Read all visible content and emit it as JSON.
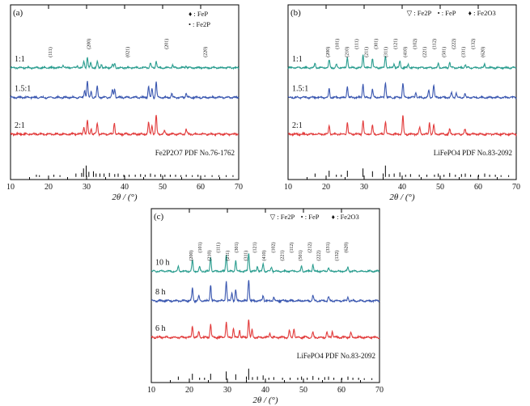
{
  "chart_data": [
    {
      "panel_label": "(a)",
      "type": "line",
      "xlabel": "2θ / (°)",
      "x_ticks": [
        10,
        20,
        30,
        40,
        50,
        60,
        70
      ],
      "xlim": [
        10,
        70
      ],
      "legend": [
        {
          "symbol": "♦",
          "label": "FeP"
        },
        {
          "symbol": "•",
          "label": "Fe2P"
        }
      ],
      "series": [
        {
          "name": "1:1",
          "color": "#2a9d8f",
          "peaks": [
            [
              23.8,
              0.08
            ],
            [
              27.6,
              0.06
            ],
            [
              29.3,
              0.18
            ],
            [
              30.2,
              0.32
            ],
            [
              31.1,
              0.14
            ],
            [
              32.8,
              0.18
            ],
            [
              33.9,
              0.1
            ],
            [
              36.8,
              0.1
            ],
            [
              37.4,
              0.12
            ],
            [
              46.8,
              0.14
            ],
            [
              48.3,
              0.2
            ],
            [
              52.6,
              0.08
            ],
            [
              56.2,
              0.06
            ]
          ]
        },
        {
          "name": "1.5:1",
          "color": "#3a57b0",
          "peaks": [
            [
              29.5,
              0.2
            ],
            [
              30.2,
              0.45
            ],
            [
              31.2,
              0.18
            ],
            [
              32.8,
              0.3
            ],
            [
              36.8,
              0.2
            ],
            [
              37.4,
              0.24
            ],
            [
              46.3,
              0.3
            ],
            [
              47.2,
              0.25
            ],
            [
              48.3,
              0.42
            ],
            [
              52.4,
              0.1
            ],
            [
              56.2,
              0.12
            ]
          ]
        },
        {
          "name": "2:1",
          "color": "#e23b3b",
          "peaks": [
            [
              29.3,
              0.2
            ],
            [
              30.2,
              0.35
            ],
            [
              31.2,
              0.15
            ],
            [
              32.8,
              0.3
            ],
            [
              37.3,
              0.3
            ],
            [
              46.3,
              0.3
            ],
            [
              47.2,
              0.24
            ],
            [
              48.3,
              0.5
            ],
            [
              50.5,
              0.08
            ],
            [
              56.2,
              0.12
            ]
          ]
        }
      ],
      "peak_labels": [
        "(111)",
        "(200)",
        "(021)",
        "(201)",
        "(220)"
      ],
      "reference_label": "Fe2P2O7 PDF No.76-1762",
      "reference_lines": [
        [
          16.8,
          0.2
        ],
        [
          17.6,
          0.15
        ],
        [
          21.4,
          0.2
        ],
        [
          23.0,
          0.15
        ],
        [
          27.2,
          0.3
        ],
        [
          28.7,
          0.35
        ],
        [
          29.2,
          0.75
        ],
        [
          29.9,
          1.0
        ],
        [
          30.6,
          0.45
        ],
        [
          31.8,
          0.5
        ],
        [
          32.5,
          0.3
        ],
        [
          33.5,
          0.3
        ],
        [
          34.6,
          0.3
        ],
        [
          36.0,
          0.35
        ],
        [
          37.4,
          0.25
        ],
        [
          38.3,
          0.3
        ],
        [
          39.8,
          0.2
        ],
        [
          41.2,
          0.2
        ],
        [
          42.8,
          0.2
        ],
        [
          44.2,
          0.25
        ],
        [
          45.4,
          0.2
        ],
        [
          46.8,
          0.3
        ],
        [
          48.0,
          0.2
        ],
        [
          49.5,
          0.25
        ],
        [
          50.6,
          0.2
        ],
        [
          52.0,
          0.2
        ],
        [
          53.4,
          0.2
        ],
        [
          54.8,
          0.15
        ],
        [
          56.2,
          0.2
        ],
        [
          57.8,
          0.15
        ],
        [
          59.3,
          0.2
        ],
        [
          61.1,
          0.15
        ],
        [
          63.0,
          0.15
        ],
        [
          64.8,
          0.15
        ],
        [
          66.7,
          0.15
        ],
        [
          68.5,
          0.15
        ]
      ]
    },
    {
      "panel_label": "(b)",
      "type": "line",
      "xlabel": "2θ / (°)",
      "x_ticks": [
        10,
        20,
        30,
        40,
        50,
        60,
        70
      ],
      "xlim": [
        10,
        70
      ],
      "legend": [
        {
          "symbol": "▽",
          "label": "Fe2P"
        },
        {
          "symbol": "•",
          "label": "FeP"
        },
        {
          "symbol": "♦",
          "label": "Fe2O3"
        }
      ],
      "series": [
        {
          "name": "1:1",
          "color": "#2a9d8f",
          "peaks": [
            [
              17.1,
              0.12
            ],
            [
              20.8,
              0.22
            ],
            [
              22.7,
              0.1
            ],
            [
              25.6,
              0.3
            ],
            [
              29.7,
              0.4
            ],
            [
              32.2,
              0.28
            ],
            [
              35.6,
              0.35
            ],
            [
              37.9,
              0.12
            ],
            [
              39.4,
              0.2
            ],
            [
              41.6,
              0.1
            ],
            [
              49.5,
              0.12
            ],
            [
              52.5,
              0.18
            ],
            [
              56.6,
              0.1
            ],
            [
              61.7,
              0.1
            ]
          ]
        },
        {
          "name": "1.5:1",
          "color": "#3a57b0",
          "peaks": [
            [
              20.8,
              0.24
            ],
            [
              25.6,
              0.32
            ],
            [
              29.7,
              0.38
            ],
            [
              32.2,
              0.22
            ],
            [
              35.6,
              0.42
            ],
            [
              40.2,
              0.4
            ],
            [
              43.6,
              0.14
            ],
            [
              47.0,
              0.2
            ],
            [
              48.3,
              0.34
            ],
            [
              53.0,
              0.12
            ],
            [
              54.2,
              0.12
            ],
            [
              56.5,
              0.1
            ]
          ]
        },
        {
          "name": "2:1",
          "color": "#e23b3b",
          "peaks": [
            [
              20.8,
              0.24
            ],
            [
              25.6,
              0.3
            ],
            [
              29.7,
              0.35
            ],
            [
              32.2,
              0.22
            ],
            [
              35.6,
              0.34
            ],
            [
              40.2,
              0.5
            ],
            [
              44.6,
              0.16
            ],
            [
              47.2,
              0.3
            ],
            [
              48.3,
              0.24
            ],
            [
              52.5,
              0.12
            ],
            [
              56.5,
              0.12
            ]
          ]
        }
      ],
      "peak_labels": [
        "(200)",
        "(101)",
        "(210)",
        "(111)",
        "(211)",
        "(301)",
        "(311)",
        "(121)",
        "(410)",
        "(102)",
        "(221)",
        "(112)",
        "(501)",
        "(222)",
        "(331)",
        "(132)",
        "(620)"
      ],
      "reference_label": "LiFePO4 PDF No.83-2092",
      "reference_lines": [
        [
          17.1,
          0.3
        ],
        [
          20.8,
          0.55
        ],
        [
          22.7,
          0.2
        ],
        [
          24.0,
          0.2
        ],
        [
          25.6,
          0.55
        ],
        [
          29.7,
          0.75
        ],
        [
          32.2,
          0.5
        ],
        [
          35.0,
          0.3
        ],
        [
          35.6,
          1.0
        ],
        [
          36.6,
          0.25
        ],
        [
          37.9,
          0.3
        ],
        [
          39.4,
          0.4
        ],
        [
          40.9,
          0.2
        ],
        [
          42.2,
          0.25
        ],
        [
          44.5,
          0.2
        ],
        [
          46.5,
          0.2
        ],
        [
          48.5,
          0.2
        ],
        [
          49.5,
          0.3
        ],
        [
          51.0,
          0.2
        ],
        [
          52.5,
          0.35
        ],
        [
          54.0,
          0.2
        ],
        [
          55.6,
          0.25
        ],
        [
          56.6,
          0.3
        ],
        [
          58.0,
          0.2
        ],
        [
          60.1,
          0.2
        ],
        [
          61.7,
          0.3
        ],
        [
          63.0,
          0.2
        ],
        [
          64.5,
          0.2
        ],
        [
          66.0,
          0.15
        ],
        [
          68.0,
          0.15
        ]
      ]
    },
    {
      "panel_label": "(c)",
      "type": "line",
      "xlabel": "2θ / (°)",
      "x_ticks": [
        10,
        20,
        30,
        40,
        50,
        60,
        70
      ],
      "xlim": [
        10,
        70
      ],
      "legend": [
        {
          "symbol": "▽",
          "label": "Fe2P"
        },
        {
          "symbol": "•",
          "label": "FeP"
        },
        {
          "symbol": "♦",
          "label": "Fe2O3"
        }
      ],
      "series": [
        {
          "name": "10 h",
          "color": "#2a9d8f",
          "peaks": [
            [
              17.1,
              0.15
            ],
            [
              20.8,
              0.32
            ],
            [
              22.7,
              0.12
            ],
            [
              25.6,
              0.42
            ],
            [
              29.7,
              0.5
            ],
            [
              32.2,
              0.32
            ],
            [
              35.6,
              0.55
            ],
            [
              37.9,
              0.15
            ],
            [
              39.4,
              0.22
            ],
            [
              41.6,
              0.12
            ],
            [
              49.5,
              0.14
            ],
            [
              52.5,
              0.2
            ],
            [
              56.6,
              0.12
            ],
            [
              61.7,
              0.12
            ]
          ]
        },
        {
          "name": "8 h",
          "color": "#3a57b0",
          "peaks": [
            [
              20.8,
              0.35
            ],
            [
              22.5,
              0.12
            ],
            [
              25.6,
              0.45
            ],
            [
              29.7,
              0.55
            ],
            [
              31.2,
              0.22
            ],
            [
              32.2,
              0.3
            ],
            [
              35.6,
              0.6
            ],
            [
              39.4,
              0.15
            ],
            [
              42.2,
              0.1
            ],
            [
              52.5,
              0.15
            ],
            [
              56.6,
              0.1
            ],
            [
              61.7,
              0.1
            ]
          ]
        },
        {
          "name": "6 h",
          "color": "#e23b3b",
          "peaks": [
            [
              20.8,
              0.3
            ],
            [
              22.5,
              0.15
            ],
            [
              25.6,
              0.35
            ],
            [
              29.7,
              0.4
            ],
            [
              31.6,
              0.25
            ],
            [
              33.2,
              0.2
            ],
            [
              35.6,
              0.48
            ],
            [
              36.5,
              0.2
            ],
            [
              41.2,
              0.12
            ],
            [
              46.3,
              0.18
            ],
            [
              47.5,
              0.22
            ],
            [
              52.5,
              0.12
            ],
            [
              56.2,
              0.14
            ],
            [
              57.6,
              0.16
            ],
            [
              62.5,
              0.12
            ]
          ]
        }
      ],
      "peak_labels": [
        "(200)",
        "(101)",
        "(210)",
        "(111)",
        "(211)",
        "(301)",
        "(311)",
        "(121)",
        "(410)",
        "(102)",
        "(221)",
        "(112)",
        "(501)",
        "(212)",
        "(222)",
        "(331)",
        "(132)",
        "(620)"
      ],
      "reference_label": "LiFePO4 PDF No.83-2092",
      "reference_lines": [
        [
          17.1,
          0.3
        ],
        [
          20.8,
          0.55
        ],
        [
          22.7,
          0.2
        ],
        [
          24.0,
          0.2
        ],
        [
          25.6,
          0.55
        ],
        [
          29.7,
          0.75
        ],
        [
          32.2,
          0.5
        ],
        [
          35.0,
          0.3
        ],
        [
          35.6,
          1.0
        ],
        [
          36.6,
          0.25
        ],
        [
          37.9,
          0.3
        ],
        [
          39.4,
          0.4
        ],
        [
          40.9,
          0.2
        ],
        [
          42.2,
          0.25
        ],
        [
          44.5,
          0.2
        ],
        [
          46.5,
          0.2
        ],
        [
          48.5,
          0.2
        ],
        [
          49.5,
          0.3
        ],
        [
          51.0,
          0.2
        ],
        [
          52.5,
          0.35
        ],
        [
          54.0,
          0.2
        ],
        [
          55.6,
          0.25
        ],
        [
          56.6,
          0.3
        ],
        [
          58.0,
          0.2
        ],
        [
          60.1,
          0.2
        ],
        [
          61.7,
          0.3
        ],
        [
          63.0,
          0.2
        ],
        [
          64.5,
          0.2
        ],
        [
          66.0,
          0.15
        ],
        [
          68.0,
          0.15
        ]
      ]
    }
  ]
}
